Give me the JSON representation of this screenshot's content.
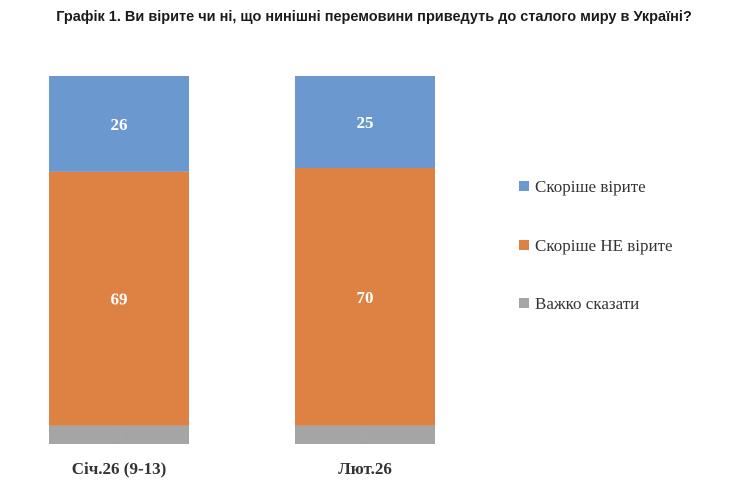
{
  "chart_data": {
    "type": "bar",
    "stacked": true,
    "title": "Графік 1. Ви вірите чи ні, що нинішні перемовини приведуть до сталого миру в Україні?",
    "categories": [
      "Січ.26 (9-13)",
      "Лют.26"
    ],
    "series": [
      {
        "name": "Важко сказати",
        "values": [
          5,
          5
        ],
        "color": "#a5a5a5"
      },
      {
        "name": "Скоріше НЕ вірите",
        "values": [
          69,
          70
        ],
        "color": "#de8244"
      },
      {
        "name": "Скоріше вірите",
        "values": [
          26,
          25
        ],
        "color": "#6a98cf"
      }
    ],
    "legend_order": [
      "Скоріше вірите",
      "Скоріше НЕ вірите",
      "Важко сказати"
    ],
    "legend_position": "right",
    "ylim": [
      0,
      100
    ],
    "grid": false
  }
}
